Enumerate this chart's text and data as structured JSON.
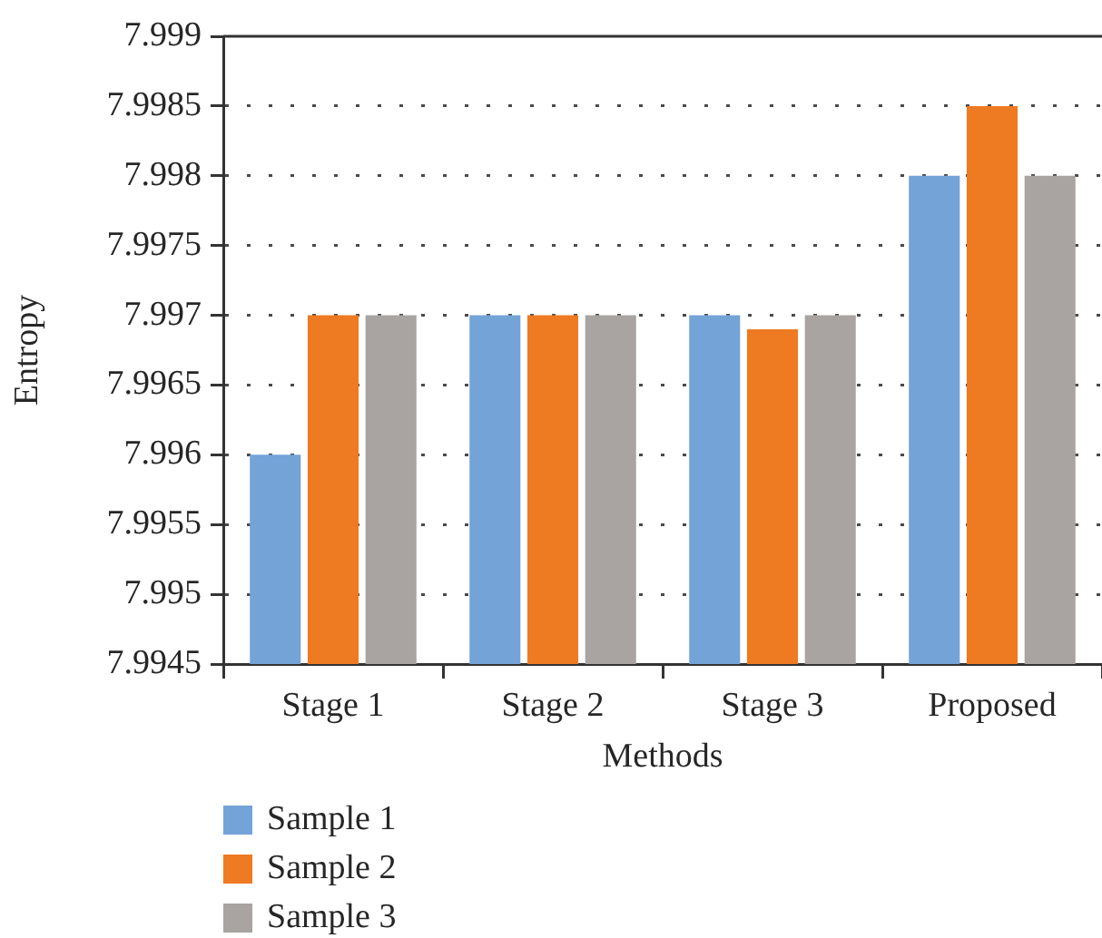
{
  "chart_data": {
    "type": "bar",
    "xlabel": "Methods",
    "ylabel": "Entropy",
    "categories": [
      "Stage 1",
      "Stage 2",
      "Stage 3",
      "Proposed"
    ],
    "series": [
      {
        "name": "Sample 1",
        "color": "#73a3d7",
        "values": [
          7.996,
          7.997,
          7.997,
          7.998
        ]
      },
      {
        "name": "Sample 2",
        "color": "#ee7a22",
        "values": [
          7.997,
          7.997,
          7.9969,
          7.9985
        ]
      },
      {
        "name": "Sample 3",
        "color": "#a9a4a1",
        "values": [
          7.997,
          7.997,
          7.997,
          7.998
        ]
      }
    ],
    "ylim": [
      7.9945,
      7.999
    ],
    "yticks": [
      7.9945,
      7.995,
      7.9955,
      7.996,
      7.9965,
      7.997,
      7.9975,
      7.998,
      7.9985,
      7.999
    ],
    "grid": "y",
    "legend": "bottom left"
  }
}
